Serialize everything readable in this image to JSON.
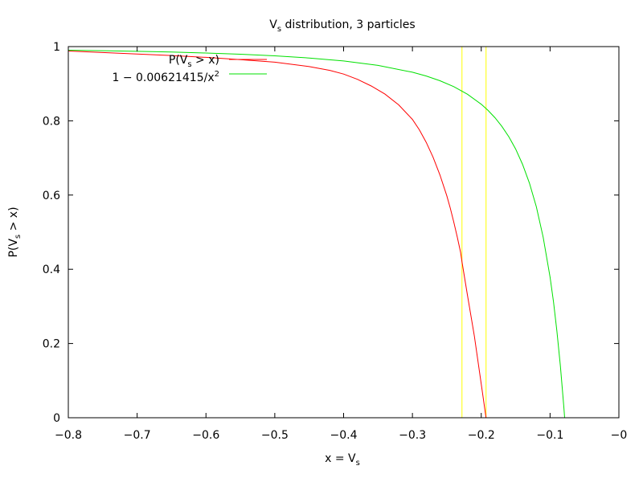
{
  "chart_data": {
    "type": "line",
    "title": {
      "main": "V",
      "sub": "s",
      "rest": " distribution, 3 particles"
    },
    "xlabel": {
      "main": "x = V",
      "sub": "s"
    },
    "ylabel": {
      "main": "P(V",
      "sub": "s",
      "rest": " > x)"
    },
    "xlim": [
      -0.8,
      0
    ],
    "ylim": [
      0,
      1
    ],
    "x_ticks": [
      -0.8,
      -0.7,
      -0.6,
      -0.5,
      -0.4,
      -0.3,
      -0.2,
      -0.1,
      0
    ],
    "x_tick_labels": [
      "−0.8",
      "−0.7",
      "−0.6",
      "−0.5",
      "−0.4",
      "−0.3",
      "−0.2",
      "−0.1",
      "−0"
    ],
    "y_ticks": [
      0,
      0.2,
      0.4,
      0.6,
      0.8,
      1
    ],
    "y_tick_labels": [
      "0",
      "0.2",
      "0.4",
      "0.6",
      "0.8",
      "1"
    ],
    "grid": false,
    "legend_position": "top-left",
    "series": [
      {
        "legend": {
          "main": "P(V",
          "sub": "s",
          "rest": " > x)"
        },
        "color": "#ff0000",
        "x": [
          -0.8,
          -0.75,
          -0.7,
          -0.65,
          -0.6,
          -0.55,
          -0.5,
          -0.45,
          -0.42,
          -0.4,
          -0.38,
          -0.36,
          -0.34,
          -0.32,
          -0.3,
          -0.29,
          -0.28,
          -0.27,
          -0.26,
          -0.25,
          -0.245,
          -0.24,
          -0.235,
          -0.23,
          -0.228,
          -0.22,
          -0.21,
          -0.2,
          -0.193
        ],
        "y": [
          0.988,
          0.984,
          0.98,
          0.976,
          0.971,
          0.965,
          0.958,
          0.946,
          0.936,
          0.926,
          0.912,
          0.894,
          0.872,
          0.843,
          0.804,
          0.776,
          0.742,
          0.702,
          0.654,
          0.598,
          0.565,
          0.528,
          0.488,
          0.445,
          0.42,
          0.33,
          0.22,
          0.09,
          0.0
        ]
      },
      {
        "legend": {
          "main": "1 − 0.00621415/x",
          "sup": "2"
        },
        "color": "#00e000",
        "x": [
          -0.8,
          -0.75,
          -0.7,
          -0.65,
          -0.6,
          -0.55,
          -0.5,
          -0.45,
          -0.4,
          -0.35,
          -0.3,
          -0.28,
          -0.26,
          -0.24,
          -0.22,
          -0.2,
          -0.19,
          -0.18,
          -0.17,
          -0.16,
          -0.15,
          -0.14,
          -0.13,
          -0.12,
          -0.11,
          -0.1,
          -0.095,
          -0.09,
          -0.085,
          -0.08,
          -0.0788
        ],
        "y": [
          0.9903,
          0.989,
          0.9873,
          0.9853,
          0.9827,
          0.9795,
          0.9751,
          0.9693,
          0.9612,
          0.9493,
          0.931,
          0.9207,
          0.9081,
          0.8921,
          0.8716,
          0.8446,
          0.8279,
          0.8082,
          0.785,
          0.7573,
          0.7238,
          0.683,
          0.6323,
          0.5685,
          0.4864,
          0.3786,
          0.3115,
          0.2328,
          0.1399,
          0.029,
          0.0
        ]
      }
    ],
    "vertical_lines": [
      {
        "x": -0.228,
        "color": "#ffff00"
      },
      {
        "x": -0.193,
        "color": "#ffff00"
      }
    ]
  }
}
